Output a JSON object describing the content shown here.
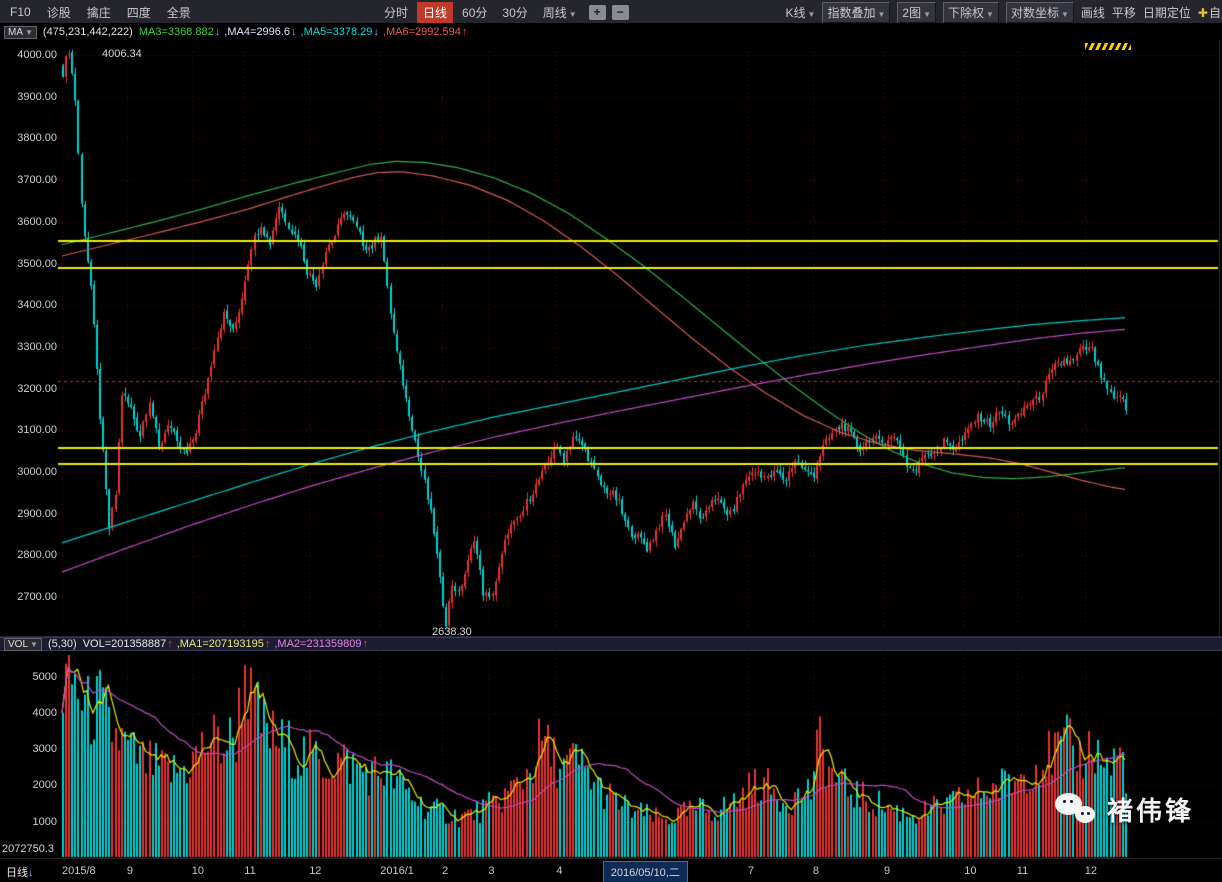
{
  "topbar": {
    "left_items": [
      "F10",
      "诊股",
      "擒庄",
      "四度",
      "全景"
    ],
    "period_tabs": [
      {
        "label": "分时",
        "active": false
      },
      {
        "label": "日线",
        "active": true
      },
      {
        "label": "60分",
        "active": false
      },
      {
        "label": "30分",
        "active": false
      },
      {
        "label": "周线",
        "active": false,
        "arrow": true
      }
    ],
    "zoom_in": "+",
    "zoom_out": "−",
    "right_items": [
      {
        "id": "kline-style",
        "label": "K线",
        "arrow": true,
        "boxed": false
      },
      {
        "id": "index-overlay",
        "label": "指数叠加",
        "arrow": true,
        "boxed": true
      },
      {
        "id": "chart-count",
        "label": "2图",
        "arrow": true,
        "boxed": true
      },
      {
        "id": "exright",
        "label": "下除权",
        "arrow": true,
        "boxed": true
      },
      {
        "id": "log-scale",
        "label": "对数坐标",
        "arrow": true,
        "boxed": true
      },
      {
        "id": "draw-line",
        "label": "画线",
        "boxed": false
      },
      {
        "id": "pan",
        "label": "平移",
        "boxed": false
      },
      {
        "id": "date-locate",
        "label": "日期定位",
        "boxed": false
      },
      {
        "id": "custom",
        "label": "自",
        "boxed": false,
        "star": true
      }
    ]
  },
  "ma_bar": {
    "indicator": "MA",
    "params": "(475,231,442,222)",
    "items": [
      {
        "text": "MA3=3368.882",
        "dir": "down",
        "color": "#3ecf3e"
      },
      {
        "text": ",MA4=2996.6",
        "dir": "down",
        "color": "#dfe6ff"
      },
      {
        "text": ",MA5=3378.29",
        "dir": "down",
        "color": "#00dede"
      },
      {
        "text": ",MA6=2992.594",
        "dir": "up",
        "color": "#e85858"
      }
    ]
  },
  "vol_bar": {
    "indicator": "VOL",
    "params": "(5,30)",
    "items": [
      {
        "text": "VOL=201358887",
        "dir": "up",
        "color": "#e8e8e8"
      },
      {
        "text": ",MA1=207193195",
        "dir": "up",
        "color": "#e8e878"
      },
      {
        "text": ",MA2=231359809",
        "dir": "up",
        "color": "#e884e8"
      }
    ]
  },
  "main_chart": {
    "y_labels": [
      "4000.00",
      "3900.00",
      "3800.00",
      "3700.00",
      "3600.00",
      "3500.00",
      "3400.00",
      "3300.00",
      "3200.00",
      "3100.00",
      "3000.00",
      "2900.00",
      "2800.00",
      "2700.00"
    ],
    "annotations": {
      "high": "4006.34",
      "low": "2638.30"
    }
  },
  "vol_chart": {
    "y_labels": [
      "5000",
      "4000",
      "3000",
      "2000",
      "1000"
    ],
    "bottom_label": "2072750.3"
  },
  "statusbar": {
    "period": "日线",
    "selected_date": "2016/05/10,二",
    "selected_i": 175
  },
  "watermark": {
    "text": "褚伟锋"
  },
  "chart_data": {
    "type": "candlestick+volume",
    "x_range": "2015/08 - 2016/12, daily bars",
    "n_candles": 345,
    "ylim": [
      2604,
      4035
    ],
    "vol_ylim": [
      0,
      5600
    ],
    "levels": {
      "yellow": [
        3555,
        3490,
        3058,
        3020
      ],
      "red_dashed": 3218
    },
    "month_ticks": [
      {
        "label": "2015/8",
        "i": 0
      },
      {
        "label": "9",
        "i": 21
      },
      {
        "label": "10",
        "i": 42
      },
      {
        "label": "11",
        "i": 59
      },
      {
        "label": "12",
        "i": 80
      },
      {
        "label": "2016/1",
        "i": 103
      },
      {
        "label": "2",
        "i": 123
      },
      {
        "label": "3",
        "i": 138
      },
      {
        "label": "4",
        "i": 160
      },
      {
        "label": "7",
        "i": 222
      },
      {
        "label": "8",
        "i": 243
      },
      {
        "label": "9",
        "i": 266
      },
      {
        "label": "10",
        "i": 292
      },
      {
        "label": "11",
        "i": 309
      },
      {
        "label": "12",
        "i": 331
      }
    ],
    "price_waypoints": [
      [
        0,
        3950
      ],
      [
        2,
        4000
      ],
      [
        4,
        3890
      ],
      [
        6,
        3650
      ],
      [
        9,
        3450
      ],
      [
        12,
        3140
      ],
      [
        15,
        2880
      ],
      [
        17,
        2950
      ],
      [
        19,
        3180
      ],
      [
        22,
        3150
      ],
      [
        25,
        3080
      ],
      [
        28,
        3160
      ],
      [
        31,
        3060
      ],
      [
        34,
        3120
      ],
      [
        37,
        3070
      ],
      [
        40,
        3060
      ],
      [
        43,
        3100
      ],
      [
        46,
        3190
      ],
      [
        49,
        3300
      ],
      [
        52,
        3360
      ],
      [
        55,
        3330
      ],
      [
        58,
        3420
      ],
      [
        61,
        3540
      ],
      [
        64,
        3610
      ],
      [
        67,
        3560
      ],
      [
        70,
        3640
      ],
      [
        73,
        3600
      ],
      [
        76,
        3550
      ],
      [
        79,
        3470
      ],
      [
        82,
        3450
      ],
      [
        85,
        3520
      ],
      [
        88,
        3570
      ],
      [
        91,
        3640
      ],
      [
        94,
        3600
      ],
      [
        97,
        3560
      ],
      [
        100,
        3545
      ],
      [
        103,
        3560
      ],
      [
        105,
        3430
      ],
      [
        108,
        3280
      ],
      [
        111,
        3160
      ],
      [
        114,
        3080
      ],
      [
        117,
        2980
      ],
      [
        120,
        2860
      ],
      [
        122,
        2750
      ],
      [
        124,
        2655
      ],
      [
        126,
        2735
      ],
      [
        128,
        2700
      ],
      [
        131,
        2780
      ],
      [
        133,
        2840
      ],
      [
        136,
        2695
      ],
      [
        138,
        2685
      ],
      [
        141,
        2770
      ],
      [
        144,
        2860
      ],
      [
        147,
        2890
      ],
      [
        150,
        2940
      ],
      [
        153,
        2965
      ],
      [
        156,
        3010
      ],
      [
        159,
        3055
      ],
      [
        162,
        3015
      ],
      [
        165,
        3085
      ],
      [
        168,
        3060
      ],
      [
        171,
        3020
      ],
      [
        174,
        2985
      ],
      [
        177,
        2955
      ],
      [
        180,
        2930
      ],
      [
        183,
        2865
      ],
      [
        186,
        2830
      ],
      [
        189,
        2810
      ],
      [
        192,
        2855
      ],
      [
        195,
        2885
      ],
      [
        198,
        2835
      ],
      [
        201,
        2895
      ],
      [
        204,
        2925
      ],
      [
        207,
        2895
      ],
      [
        210,
        2935
      ],
      [
        213,
        2910
      ],
      [
        216,
        2895
      ],
      [
        219,
        2935
      ],
      [
        222,
        2990
      ],
      [
        225,
        3010
      ],
      [
        228,
        2985
      ],
      [
        231,
        3012
      ],
      [
        234,
        2992
      ],
      [
        237,
        3022
      ],
      [
        240,
        3002
      ],
      [
        243,
        2985
      ],
      [
        246,
        3045
      ],
      [
        249,
        3095
      ],
      [
        252,
        3115
      ],
      [
        255,
        3092
      ],
      [
        258,
        3072
      ],
      [
        261,
        3082
      ],
      [
        264,
        3072
      ],
      [
        267,
        3082
      ],
      [
        270,
        3062
      ],
      [
        273,
        3012
      ],
      [
        276,
        3002
      ],
      [
        279,
        3042
      ],
      [
        282,
        3062
      ],
      [
        285,
        3082
      ],
      [
        288,
        3062
      ],
      [
        291,
        3085
      ],
      [
        294,
        3105
      ],
      [
        297,
        3120
      ],
      [
        300,
        3112
      ],
      [
        303,
        3132
      ],
      [
        306,
        3122
      ],
      [
        309,
        3142
      ],
      [
        312,
        3165
      ],
      [
        315,
        3185
      ],
      [
        318,
        3215
      ],
      [
        321,
        3240
      ],
      [
        324,
        3265
      ],
      [
        327,
        3252
      ],
      [
        329,
        3275
      ],
      [
        331,
        3292
      ],
      [
        333,
        3300
      ],
      [
        335,
        3252
      ],
      [
        337,
        3212
      ],
      [
        340,
        3182
      ],
      [
        342,
        3202
      ],
      [
        344,
        3152
      ]
    ],
    "volume_waypoints": [
      [
        0,
        4400
      ],
      [
        2,
        5100
      ],
      [
        5,
        4600
      ],
      [
        8,
        4000
      ],
      [
        12,
        4200
      ],
      [
        15,
        3600
      ],
      [
        18,
        3300
      ],
      [
        21,
        3000
      ],
      [
        25,
        2700
      ],
      [
        30,
        2500
      ],
      [
        35,
        2350
      ],
      [
        40,
        2500
      ],
      [
        44,
        2900
      ],
      [
        48,
        3300
      ],
      [
        52,
        3100
      ],
      [
        56,
        3400
      ],
      [
        59,
        5300
      ],
      [
        61,
        4300
      ],
      [
        64,
        3700
      ],
      [
        68,
        3300
      ],
      [
        72,
        3100
      ],
      [
        76,
        2900
      ],
      [
        80,
        2800
      ],
      [
        85,
        2600
      ],
      [
        90,
        2700
      ],
      [
        95,
        2500
      ],
      [
        100,
        2300
      ],
      [
        104,
        2400
      ],
      [
        108,
        2100
      ],
      [
        112,
        1800
      ],
      [
        116,
        1500
      ],
      [
        120,
        1300
      ],
      [
        124,
        1250
      ],
      [
        128,
        1150
      ],
      [
        132,
        1200
      ],
      [
        136,
        1350
      ],
      [
        140,
        1500
      ],
      [
        144,
        1800
      ],
      [
        148,
        2100
      ],
      [
        152,
        2600
      ],
      [
        155,
        3300
      ],
      [
        158,
        2800
      ],
      [
        162,
        2500
      ],
      [
        166,
        2700
      ],
      [
        170,
        2300
      ],
      [
        174,
        1900
      ],
      [
        178,
        1600
      ],
      [
        182,
        1400
      ],
      [
        186,
        1250
      ],
      [
        190,
        1150
      ],
      [
        194,
        1050
      ],
      [
        198,
        1150
      ],
      [
        202,
        1250
      ],
      [
        206,
        1350
      ],
      [
        210,
        1300
      ],
      [
        214,
        1400
      ],
      [
        218,
        1600
      ],
      [
        222,
        1900
      ],
      [
        226,
        2100
      ],
      [
        230,
        1800
      ],
      [
        234,
        1600
      ],
      [
        238,
        1700
      ],
      [
        242,
        1900
      ],
      [
        245,
        3200
      ],
      [
        248,
        2400
      ],
      [
        252,
        2000
      ],
      [
        256,
        1800
      ],
      [
        260,
        1600
      ],
      [
        264,
        1500
      ],
      [
        268,
        1350
      ],
      [
        272,
        1250
      ],
      [
        276,
        1200
      ],
      [
        280,
        1300
      ],
      [
        284,
        1400
      ],
      [
        288,
        1500
      ],
      [
        292,
        1700
      ],
      [
        296,
        1800
      ],
      [
        300,
        1900
      ],
      [
        304,
        2000
      ],
      [
        309,
        2200
      ],
      [
        313,
        2500
      ],
      [
        317,
        2700
      ],
      [
        321,
        2900
      ],
      [
        325,
        3100
      ],
      [
        329,
        2800
      ],
      [
        333,
        3100
      ],
      [
        336,
        2700
      ],
      [
        339,
        2500
      ],
      [
        342,
        2900
      ],
      [
        344,
        2400
      ]
    ],
    "overlays": [
      {
        "name": "ma-green",
        "color": "#2fae4f",
        "points": [
          [
            0,
            3545
          ],
          [
            15,
            3572
          ],
          [
            30,
            3600
          ],
          [
            45,
            3630
          ],
          [
            60,
            3662
          ],
          [
            75,
            3692
          ],
          [
            90,
            3720
          ],
          [
            100,
            3738
          ],
          [
            108,
            3745
          ],
          [
            118,
            3742
          ],
          [
            128,
            3730
          ],
          [
            140,
            3705
          ],
          [
            152,
            3668
          ],
          [
            164,
            3620
          ],
          [
            176,
            3560
          ],
          [
            188,
            3495
          ],
          [
            200,
            3425
          ],
          [
            212,
            3352
          ],
          [
            224,
            3280
          ],
          [
            236,
            3210
          ],
          [
            248,
            3145
          ],
          [
            258,
            3095
          ],
          [
            268,
            3052
          ],
          [
            278,
            3020
          ],
          [
            288,
            2998
          ],
          [
            298,
            2987
          ],
          [
            308,
            2984
          ],
          [
            318,
            2988
          ],
          [
            328,
            2996
          ],
          [
            336,
            3004
          ],
          [
            344,
            3010
          ]
        ]
      },
      {
        "name": "ma-red",
        "color": "#d85858",
        "points": [
          [
            0,
            3518
          ],
          [
            15,
            3545
          ],
          [
            30,
            3572
          ],
          [
            45,
            3600
          ],
          [
            60,
            3630
          ],
          [
            72,
            3658
          ],
          [
            84,
            3685
          ],
          [
            94,
            3706
          ],
          [
            102,
            3718
          ],
          [
            110,
            3720
          ],
          [
            120,
            3710
          ],
          [
            132,
            3688
          ],
          [
            144,
            3652
          ],
          [
            156,
            3602
          ],
          [
            168,
            3540
          ],
          [
            180,
            3470
          ],
          [
            192,
            3395
          ],
          [
            204,
            3320
          ],
          [
            216,
            3250
          ],
          [
            228,
            3188
          ],
          [
            240,
            3135
          ],
          [
            252,
            3095
          ],
          [
            264,
            3068
          ],
          [
            276,
            3052
          ],
          [
            288,
            3044
          ],
          [
            300,
            3034
          ],
          [
            310,
            3020
          ],
          [
            320,
            3000
          ],
          [
            330,
            2980
          ],
          [
            338,
            2966
          ],
          [
            344,
            2958
          ]
        ]
      },
      {
        "name": "ma-cyan",
        "color": "#00c8c8",
        "points": [
          [
            0,
            2830
          ],
          [
            20,
            2878
          ],
          [
            40,
            2925
          ],
          [
            60,
            2972
          ],
          [
            80,
            3018
          ],
          [
            100,
            3060
          ],
          [
            120,
            3098
          ],
          [
            140,
            3132
          ],
          [
            160,
            3162
          ],
          [
            180,
            3192
          ],
          [
            200,
            3222
          ],
          [
            220,
            3252
          ],
          [
            240,
            3280
          ],
          [
            260,
            3304
          ],
          [
            280,
            3324
          ],
          [
            300,
            3342
          ],
          [
            315,
            3354
          ],
          [
            330,
            3363
          ],
          [
            344,
            3370
          ]
        ]
      },
      {
        "name": "ma-magenta",
        "color": "#c44ac4",
        "points": [
          [
            0,
            2760
          ],
          [
            20,
            2815
          ],
          [
            40,
            2868
          ],
          [
            60,
            2918
          ],
          [
            80,
            2965
          ],
          [
            100,
            3008
          ],
          [
            120,
            3048
          ],
          [
            140,
            3084
          ],
          [
            160,
            3116
          ],
          [
            180,
            3146
          ],
          [
            200,
            3175
          ],
          [
            220,
            3204
          ],
          [
            240,
            3232
          ],
          [
            260,
            3258
          ],
          [
            280,
            3282
          ],
          [
            300,
            3304
          ],
          [
            315,
            3320
          ],
          [
            330,
            3333
          ],
          [
            344,
            3342
          ]
        ]
      }
    ]
  }
}
